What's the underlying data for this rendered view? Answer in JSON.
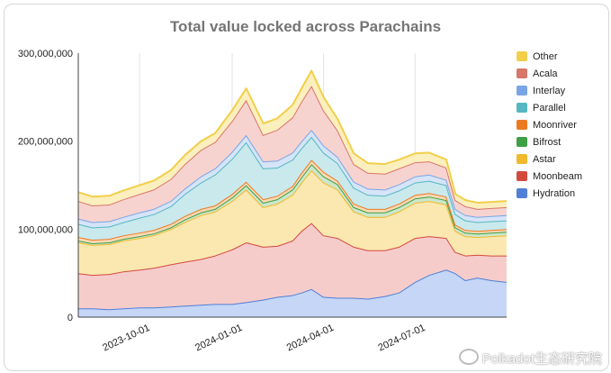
{
  "chart_data": {
    "type": "area",
    "stacked": true,
    "title": "Total value locked across Parachains",
    "xlabel": "",
    "ylabel": "",
    "ylim": [
      0,
      300000000
    ],
    "y_ticks": [
      0,
      100000000,
      200000000,
      300000000
    ],
    "y_tick_labels": [
      "0",
      "100,000,000",
      "200,000,000",
      "300,000,000"
    ],
    "x_range": [
      "2023-08-01",
      "2024-09-30"
    ],
    "x_ticks": [
      "2023-10-01",
      "2024-01-01",
      "2024-04-01",
      "2024-07-01"
    ],
    "grid": "vertical",
    "legend_position": "right",
    "x": [
      "2023-08-01",
      "2023-08-15",
      "2023-09-01",
      "2023-09-15",
      "2023-10-01",
      "2023-10-15",
      "2023-11-01",
      "2023-11-15",
      "2023-12-01",
      "2023-12-15",
      "2024-01-01",
      "2024-01-15",
      "2024-02-01",
      "2024-02-15",
      "2024-03-01",
      "2024-03-10",
      "2024-03-20",
      "2024-04-01",
      "2024-04-15",
      "2024-05-01",
      "2024-05-15",
      "2024-06-01",
      "2024-06-15",
      "2024-07-01",
      "2024-07-15",
      "2024-08-01",
      "2024-08-10",
      "2024-08-20",
      "2024-09-01",
      "2024-09-15",
      "2024-09-30"
    ],
    "series": [
      {
        "name": "Hydration",
        "color": "#4f7fd6",
        "fill": "#c5d6f6",
        "values": [
          10,
          10,
          9,
          10,
          11,
          11,
          12,
          13,
          14,
          15,
          15,
          17,
          20,
          23,
          25,
          28,
          32,
          23,
          22,
          22,
          21,
          24,
          28,
          40,
          48,
          54,
          50,
          42,
          45,
          42,
          40
        ]
      },
      {
        "name": "Moonbeam",
        "color": "#d24a3e",
        "fill": "#f6cccb",
        "values": [
          40,
          38,
          40,
          42,
          43,
          45,
          48,
          50,
          52,
          55,
          62,
          68,
          60,
          58,
          62,
          70,
          75,
          70,
          68,
          58,
          55,
          52,
          52,
          50,
          44,
          36,
          24,
          28,
          26,
          28,
          30
        ]
      },
      {
        "name": "Astar",
        "color": "#f0b92c",
        "fill": "#fbe7b0",
        "values": [
          35,
          34,
          34,
          35,
          36,
          37,
          40,
          45,
          50,
          50,
          55,
          60,
          45,
          48,
          52,
          55,
          60,
          60,
          55,
          40,
          38,
          38,
          40,
          40,
          40,
          38,
          24,
          22,
          20,
          22,
          23
        ]
      },
      {
        "name": "Bifrost",
        "color": "#3f9f44",
        "fill": "#cbe7cb",
        "values": [
          2,
          2,
          2,
          2,
          2,
          2,
          2,
          3,
          3,
          3,
          4,
          5,
          5,
          5,
          6,
          6,
          7,
          7,
          6,
          5,
          5,
          5,
          5,
          5,
          5,
          5,
          4,
          4,
          4,
          4,
          4
        ]
      },
      {
        "name": "Moonriver",
        "color": "#ec7a21",
        "fill": "#fcd8b4",
        "values": [
          4,
          4,
          4,
          4,
          4,
          4,
          4,
          4,
          4,
          4,
          4,
          4,
          4,
          4,
          4,
          5,
          5,
          5,
          4,
          4,
          4,
          4,
          4,
          4,
          4,
          4,
          3,
          3,
          3,
          3,
          3
        ]
      },
      {
        "name": "Parallel",
        "color": "#54b7c2",
        "fill": "#c9e9ec",
        "values": [
          15,
          14,
          14,
          15,
          17,
          18,
          20,
          25,
          30,
          35,
          40,
          45,
          35,
          32,
          30,
          28,
          26,
          22,
          20,
          18,
          16,
          15,
          15,
          14,
          14,
          13,
          12,
          11,
          10,
          10,
          10
        ]
      },
      {
        "name": "Interlay",
        "color": "#79a5e6",
        "fill": "#d6e4f8",
        "values": [
          6,
          6,
          6,
          6,
          6,
          6,
          6,
          6,
          7,
          7,
          8,
          8,
          8,
          8,
          8,
          8,
          8,
          8,
          7,
          7,
          7,
          7,
          7,
          7,
          7,
          6,
          6,
          6,
          6,
          6,
          6
        ]
      },
      {
        "name": "Acala",
        "color": "#d8766b",
        "fill": "#f7d3cf",
        "values": [
          20,
          19,
          19,
          20,
          21,
          22,
          25,
          28,
          30,
          30,
          35,
          40,
          30,
          35,
          40,
          45,
          50,
          40,
          30,
          20,
          18,
          18,
          18,
          16,
          15,
          14,
          10,
          10,
          9,
          9,
          9
        ]
      },
      {
        "name": "Other",
        "color": "#f1cf4a",
        "fill": "#fbefbd",
        "values": [
          10,
          10,
          10,
          10,
          10,
          10,
          10,
          10,
          10,
          10,
          12,
          13,
          13,
          13,
          14,
          15,
          17,
          15,
          13,
          12,
          11,
          11,
          10,
          10,
          10,
          9,
          7,
          7,
          7,
          7,
          7
        ]
      }
    ]
  },
  "watermark": "Polkadot生态研究院"
}
